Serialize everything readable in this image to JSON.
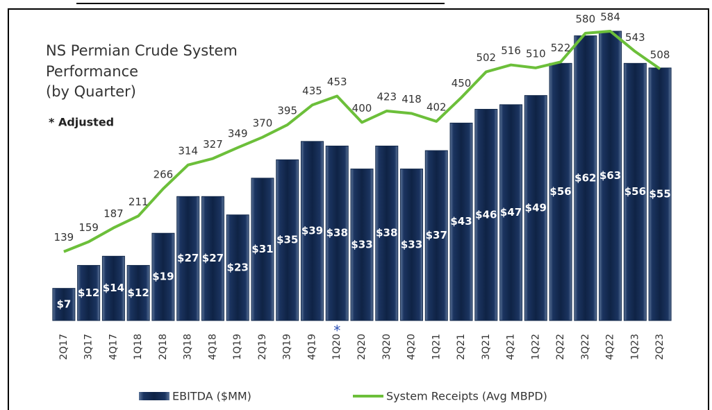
{
  "chart_data": {
    "type": "bar_line",
    "title": [
      "NS Permian Crude System",
      "Performance",
      "(by Quarter)"
    ],
    "note": "* Adjusted",
    "annotation": {
      "text": "*",
      "category": 11
    },
    "categories": [
      "2Q17",
      "3Q17",
      "4Q17",
      "1Q18",
      "2Q18",
      "3Q18",
      "4Q18",
      "1Q19",
      "2Q19",
      "3Q19",
      "4Q19",
      "1Q20",
      "2Q20",
      "3Q20",
      "4Q20",
      "1Q21",
      "2Q21",
      "3Q21",
      "4Q21",
      "1Q22",
      "2Q22",
      "3Q22",
      "4Q22",
      "1Q23",
      "2Q23"
    ],
    "series": [
      {
        "name": "EBITDA ($MM)",
        "type": "bar",
        "color": "#13294b",
        "values": [
          7,
          12,
          14,
          12,
          19,
          27,
          27,
          23,
          31,
          35,
          39,
          38,
          33,
          38,
          33,
          37,
          43,
          46,
          47,
          49,
          56,
          62,
          63,
          56,
          55
        ],
        "value_labels": [
          "$7",
          "$12",
          "$14",
          "$12",
          "$19",
          "$27",
          "$27",
          "$23",
          "$31",
          "$35",
          "$39",
          "$38",
          "$33",
          "$38",
          "$33",
          "$37",
          "$43",
          "$46",
          "$47",
          "$49",
          "$56",
          "$62",
          "$63",
          "$56",
          "$55"
        ]
      },
      {
        "name": "System Receipts (Avg MBPD)",
        "type": "line",
        "axis": "y2",
        "color": "#6cbf3a",
        "values": [
          139,
          159,
          187,
          211,
          266,
          314,
          327,
          349,
          370,
          395,
          435,
          453,
          400,
          423,
          418,
          402,
          450,
          502,
          516,
          510,
          522,
          580,
          584,
          543,
          508
        ]
      }
    ],
    "ylim": [
      0,
      63
    ],
    "y2lim": [
      0,
      584
    ]
  }
}
